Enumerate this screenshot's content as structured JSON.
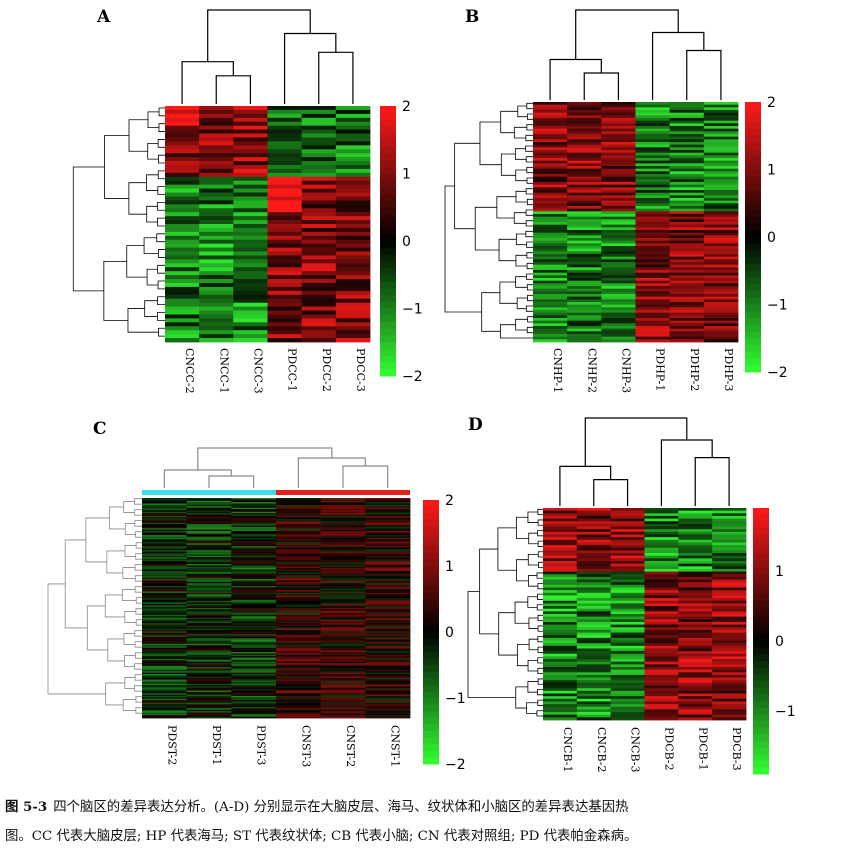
{
  "figure": {
    "panels": [
      {
        "id": "A",
        "label": "A",
        "columns": [
          "CNCC-2",
          "CNCC-1",
          "CNCC-3",
          "PDCC-1",
          "PDCC-2",
          "PDCC-3"
        ],
        "legend_ticks": [
          "2",
          "1",
          "0",
          "−1",
          "−2"
        ],
        "legend_range": [
          -2,
          2
        ],
        "has_group_bar": false,
        "col_tree": [
          [
            1,
            2
          ],
          [
            0,
            6
          ],
          [
            4,
            5
          ],
          [
            3,
            8
          ],
          [
            7,
            9
          ]
        ],
        "heat_blocks": [
          {
            "cols": [
              0,
              2
            ],
            "rows": [
              0.0,
              0.3
            ],
            "value": 1.1
          },
          {
            "cols": [
              0,
              2
            ],
            "rows": [
              0.3,
              1.0
            ],
            "value": -1.0
          },
          {
            "cols": [
              3,
              5
            ],
            "rows": [
              0.0,
              0.3
            ],
            "value": -0.9
          },
          {
            "cols": [
              3,
              5
            ],
            "rows": [
              0.3,
              1.0
            ],
            "value": 1.0
          },
          {
            "cols": [
              0,
              0
            ],
            "rows": [
              0.0,
              0.08
            ],
            "value": 2.0
          },
          {
            "cols": [
              3,
              3
            ],
            "rows": [
              0.3,
              0.45
            ],
            "value": 2.0
          }
        ]
      },
      {
        "id": "B",
        "label": "B",
        "columns": [
          "CNHP-1",
          "CNHP-2",
          "CNHP-3",
          "PDHP-1",
          "PDHP-2",
          "PDHP-3"
        ],
        "legend_ticks": [
          "2",
          "1",
          "0",
          "−1",
          "−2"
        ],
        "legend_range": [
          -2,
          2
        ],
        "has_group_bar": false,
        "col_tree": [
          [
            1,
            2
          ],
          [
            0,
            6
          ],
          [
            4,
            5
          ],
          [
            3,
            8
          ],
          [
            7,
            9
          ]
        ],
        "heat_blocks": [
          {
            "cols": [
              0,
              2
            ],
            "rows": [
              0.0,
              0.45
            ],
            "value": 1.0
          },
          {
            "cols": [
              0,
              2
            ],
            "rows": [
              0.45,
              1.0
            ],
            "value": -1.0
          },
          {
            "cols": [
              3,
              5
            ],
            "rows": [
              0.0,
              0.45
            ],
            "value": -1.0
          },
          {
            "cols": [
              3,
              5
            ],
            "rows": [
              0.45,
              1.0
            ],
            "value": 1.0
          }
        ]
      },
      {
        "id": "C",
        "label": "C",
        "columns": [
          "PDST-2",
          "PDST-1",
          "PDST-3",
          "CNST-3",
          "CNST-2",
          "CNST-1"
        ],
        "legend_ticks": [
          "2",
          "1",
          "0",
          "−1",
          "−2"
        ],
        "legend_range": [
          -2,
          2
        ],
        "has_group_bar": true,
        "group_colors": [
          "#3fdcea",
          "#e8201c"
        ],
        "col_tree": [
          [
            1,
            2
          ],
          [
            0,
            6
          ],
          [
            4,
            5
          ],
          [
            3,
            8
          ],
          [
            7,
            9
          ]
        ],
        "heat_blocks": [
          {
            "cols": [
              0,
              2
            ],
            "rows": [
              0.0,
              1.0
            ],
            "value": -0.3
          },
          {
            "cols": [
              3,
              5
            ],
            "rows": [
              0.0,
              1.0
            ],
            "value": 0.3
          }
        ]
      },
      {
        "id": "D",
        "label": "D",
        "columns": [
          "CNCB-1",
          "CNCB-2",
          "CNCB-3",
          "PDCB-2",
          "PDCB-1",
          "PDCB-3"
        ],
        "legend_ticks": [
          "1",
          "0",
          "−1"
        ],
        "legend_range": [
          -1.9,
          1.9
        ],
        "has_group_bar": false,
        "col_tree": [
          [
            1,
            2
          ],
          [
            0,
            6
          ],
          [
            4,
            5
          ],
          [
            3,
            8
          ],
          [
            7,
            9
          ]
        ],
        "heat_blocks": [
          {
            "cols": [
              0,
              2
            ],
            "rows": [
              0.0,
              0.3
            ],
            "value": 1.0
          },
          {
            "cols": [
              0,
              2
            ],
            "rows": [
              0.3,
              1.0
            ],
            "value": -1.0
          },
          {
            "cols": [
              3,
              5
            ],
            "rows": [
              0.0,
              0.3
            ],
            "value": -1.0
          },
          {
            "cols": [
              3,
              5
            ],
            "rows": [
              0.3,
              1.0
            ],
            "value": 1.0
          }
        ]
      }
    ],
    "colors": {
      "high": "#ff1a1a",
      "mid": "#000000",
      "low": "#33ff33"
    }
  },
  "caption": {
    "figure_number": "图 5-3",
    "line1": "四个脑区的差异表达分析。(A-D) 分别显示在大脑皮层、海马、纹状体和小脑区的差异表达基因热",
    "line2": "图。CC 代表大脑皮层; HP 代表海马; ST 代表纹状体; CB 代表小脑; CN 代表对照组; PD 代表帕金森病。"
  }
}
